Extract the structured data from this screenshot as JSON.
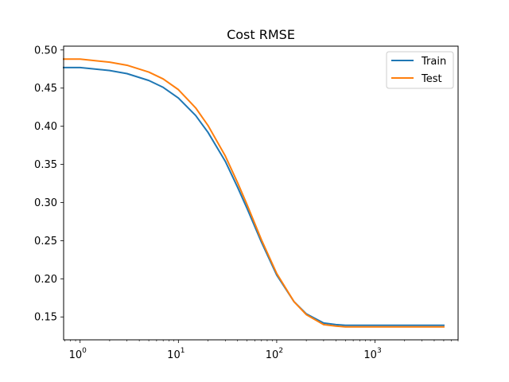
{
  "chart_data": {
    "type": "line",
    "title": "Cost RMSE",
    "xlabel": "",
    "ylabel": "",
    "xscale": "log",
    "xlim": [
      0.68,
      7000
    ],
    "ylim": [
      0.12,
      0.505
    ],
    "grid": false,
    "legend_position": "top-right",
    "x_ticks": [
      {
        "value": 1,
        "base": "10",
        "exp": "0"
      },
      {
        "value": 10,
        "base": "10",
        "exp": "1"
      },
      {
        "value": 100,
        "base": "10",
        "exp": "2"
      },
      {
        "value": 1000,
        "base": "10",
        "exp": "3"
      }
    ],
    "y_ticks": [
      {
        "value": 0.15,
        "label": "0.15"
      },
      {
        "value": 0.2,
        "label": "0.20"
      },
      {
        "value": 0.25,
        "label": "0.25"
      },
      {
        "value": 0.3,
        "label": "0.30"
      },
      {
        "value": 0.35,
        "label": "0.35"
      },
      {
        "value": 0.4,
        "label": "0.40"
      },
      {
        "value": 0.45,
        "label": "0.45"
      },
      {
        "value": 0.5,
        "label": "0.50"
      }
    ],
    "x": [
      0.68,
      1,
      2,
      3,
      5,
      7,
      10,
      15,
      20,
      30,
      40,
      50,
      70,
      100,
      150,
      200,
      300,
      400,
      500,
      700,
      1000,
      2000,
      5000
    ],
    "series": [
      {
        "name": "Train",
        "color": "#1f77b4",
        "values": [
          0.477,
          0.477,
          0.473,
          0.469,
          0.46,
          0.451,
          0.437,
          0.414,
          0.392,
          0.354,
          0.32,
          0.292,
          0.248,
          0.205,
          0.17,
          0.154,
          0.142,
          0.14,
          0.139,
          0.139,
          0.139,
          0.139,
          0.139
        ]
      },
      {
        "name": "Test",
        "color": "#ff7f0e",
        "values": [
          0.488,
          0.488,
          0.484,
          0.48,
          0.471,
          0.462,
          0.448,
          0.424,
          0.401,
          0.361,
          0.326,
          0.297,
          0.251,
          0.207,
          0.17,
          0.153,
          0.14,
          0.138,
          0.137,
          0.137,
          0.137,
          0.137,
          0.137
        ]
      }
    ]
  }
}
